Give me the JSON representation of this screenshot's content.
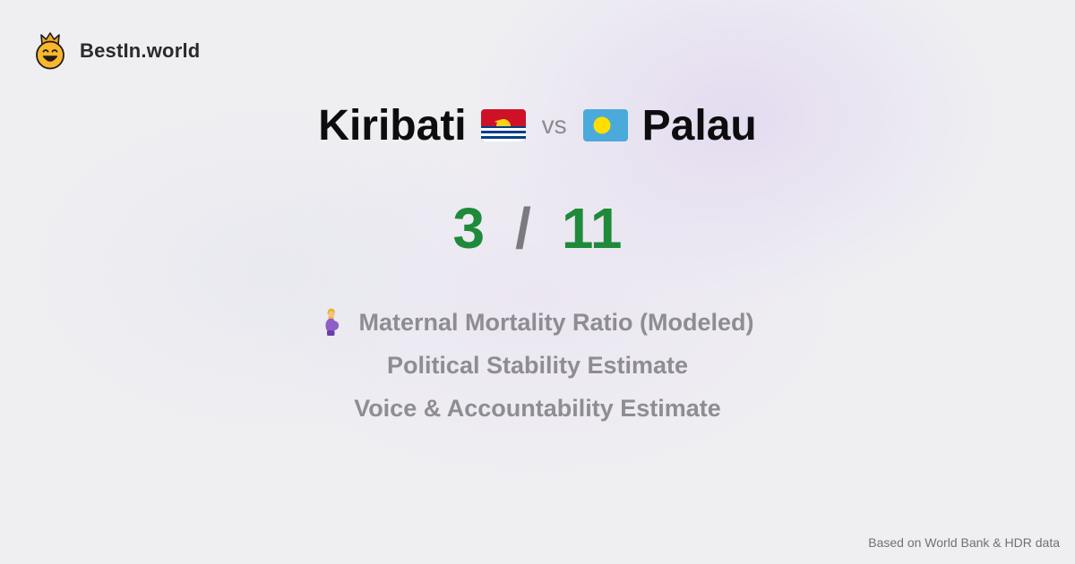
{
  "brand": {
    "name": "BestIn.world",
    "logo_icon": "smiling-crown-face-icon"
  },
  "comparison": {
    "left_country": "Kiribati",
    "left_flag_icon": "kiribati-flag-icon",
    "vs_label": "vs",
    "right_country": "Palau",
    "right_flag_icon": "palau-flag-icon"
  },
  "score": {
    "left": "3",
    "separator": "/",
    "right": "11",
    "color": "#1f8a3a"
  },
  "metrics": [
    {
      "label": "Maternal Mortality Ratio (Modeled)",
      "icon": "pregnant-woman-icon"
    },
    {
      "label": "Political Stability Estimate"
    },
    {
      "label": "Voice & Accountability Estimate"
    }
  ],
  "footer": {
    "source": "Based on World Bank & HDR data"
  }
}
